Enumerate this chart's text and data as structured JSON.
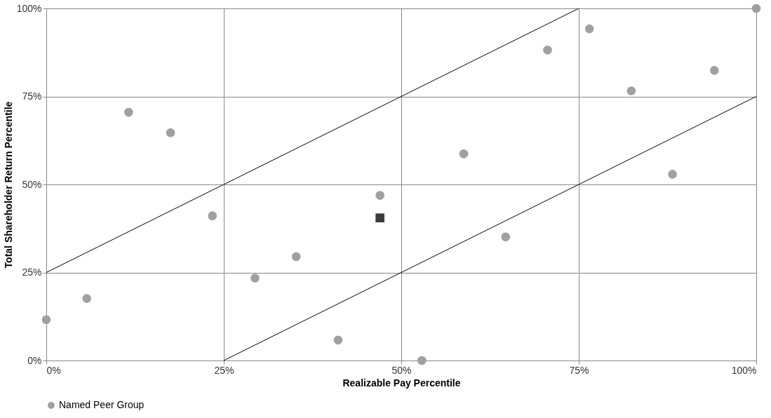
{
  "chart_data": {
    "type": "scatter",
    "xlabel": "Realizable Pay Percentile",
    "ylabel": "Total Shareholder Return Percentile",
    "xlim": [
      0,
      100
    ],
    "ylim": [
      0,
      100
    ],
    "xticks": [
      {
        "value": 0,
        "label": "0%"
      },
      {
        "value": 25,
        "label": "25%"
      },
      {
        "value": 50,
        "label": "50%"
      },
      {
        "value": 75,
        "label": "75%"
      },
      {
        "value": 100,
        "label": "100%"
      }
    ],
    "yticks": [
      {
        "value": 0,
        "label": "0%"
      },
      {
        "value": 25,
        "label": "25%"
      },
      {
        "value": 50,
        "label": "50%"
      },
      {
        "value": 75,
        "label": "75%"
      },
      {
        "value": 100,
        "label": "100%"
      }
    ],
    "grid": true,
    "legend": "bottom",
    "series": [
      {
        "name": "Named Peer Group",
        "marker": "circle",
        "color": "#a0a0a0",
        "x": [
          0,
          5.7,
          11.6,
          17.5,
          23.4,
          29.4,
          35.2,
          41.1,
          47.0,
          52.9,
          58.8,
          64.7,
          70.6,
          76.5,
          82.4,
          88.2,
          94.1,
          100
        ],
        "values": [
          11.6,
          17.6,
          70.5,
          64.7,
          41.1,
          23.4,
          29.5,
          5.8,
          46.9,
          0,
          58.7,
          35.1,
          88.2,
          94.2,
          76.6,
          52.9,
          82.4,
          100
        ]
      },
      {
        "marker": "square",
        "color": "#3a3a3a",
        "x": [
          47.0
        ],
        "values": [
          40.5
        ]
      },
      {
        "type": "line",
        "color": "#000000",
        "x": [
          0,
          75
        ],
        "values": [
          25,
          100
        ]
      },
      {
        "type": "line",
        "color": "#000000",
        "x": [
          25,
          100
        ],
        "values": [
          0,
          75
        ]
      }
    ]
  }
}
